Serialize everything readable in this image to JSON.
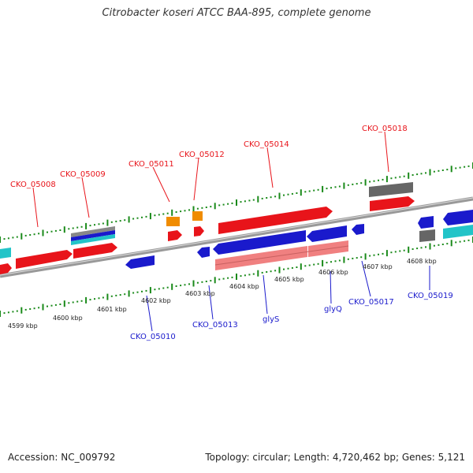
{
  "title": "Citrobacter koseri ATCC BAA-895, complete genome",
  "footer": {
    "accession": "Accession: NC_009792",
    "stats": "Topology: circular; Length: 4,720,462 bp; Genes: 5,121"
  },
  "colors": {
    "forward_gene": "#e8141a",
    "reverse_gene": "#1a1acc",
    "rna_gene": "#f08c00",
    "cyan_gene": "#22c4c8",
    "pseudo": "#777777",
    "light_red": "#f08080",
    "backbone": "#888888",
    "tick": "#1a8a1a"
  },
  "labels_top": [
    "CKO_05008",
    "CKO_05009",
    "CKO_05011",
    "CKO_05012",
    "CKO_05014",
    "CKO_05018"
  ],
  "labels_bottom": [
    "CKO_05010",
    "CKO_05013",
    "glyS",
    "glyQ",
    "CKO_05017",
    "CKO_05019"
  ],
  "kbp_labels": [
    "4599 kbp",
    "4600 kbp",
    "4601 kbp",
    "4602 kbp",
    "4603 kbp",
    "4604 kbp",
    "4605 kbp",
    "4606 kbp",
    "4607 kbp",
    "4608 kbp"
  ]
}
